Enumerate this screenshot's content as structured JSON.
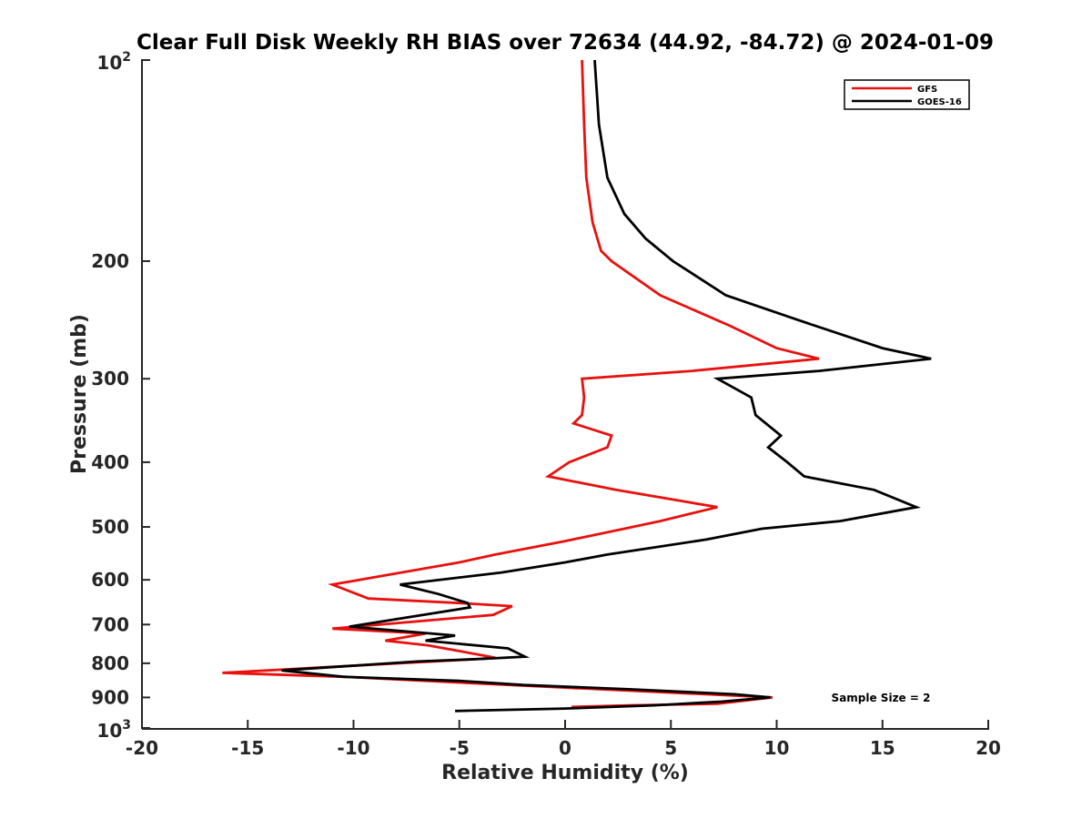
{
  "chart_data": {
    "type": "line",
    "title": "Clear Full Disk Weekly RH BIAS over 72634 (44.92, -84.72) @ 2024-01-09",
    "xlabel": "Relative Humidity (%)",
    "ylabel": "Pressure (mb)",
    "xlim": [
      -20,
      20
    ],
    "ylim": [
      100,
      1000
    ],
    "yscale": "log",
    "y_reversed": true,
    "grid": false,
    "legend_position": "top-right",
    "x_ticks": [
      "-20",
      "-15",
      "-10",
      "-5",
      "0",
      "5",
      "10",
      "15",
      "20"
    ],
    "x_tick_values": [
      -20,
      -15,
      -10,
      -5,
      0,
      5,
      10,
      15,
      20
    ],
    "y_ticks": [
      {
        "value": 100,
        "base": "10",
        "exp": "2"
      },
      {
        "value": 200,
        "label": "200"
      },
      {
        "value": 300,
        "label": "300"
      },
      {
        "value": 400,
        "label": "400"
      },
      {
        "value": 500,
        "label": "500"
      },
      {
        "value": 600,
        "label": "600"
      },
      {
        "value": 700,
        "label": "700"
      },
      {
        "value": 800,
        "label": "800"
      },
      {
        "value": 900,
        "label": "900"
      },
      {
        "value": 1000,
        "base": "10",
        "exp": "3"
      }
    ],
    "series": [
      {
        "name": "GFS",
        "color": "#e8110e",
        "points": [
          [
            0.8,
            100
          ],
          [
            0.9,
            125
          ],
          [
            1.0,
            150
          ],
          [
            1.3,
            175
          ],
          [
            1.7,
            193
          ],
          [
            2.2,
            200
          ],
          [
            4.5,
            225
          ],
          [
            7.8,
            250
          ],
          [
            10,
            270
          ],
          [
            12.0,
            280
          ],
          [
            6,
            292
          ],
          [
            0.8,
            300
          ],
          [
            0.9,
            320
          ],
          [
            0.8,
            340
          ],
          [
            0.4,
            350
          ],
          [
            2.2,
            365
          ],
          [
            2.0,
            380
          ],
          [
            0.2,
            400
          ],
          [
            -0.8,
            420
          ],
          [
            2.4,
            440
          ],
          [
            7.2,
            467
          ],
          [
            4.5,
            490
          ],
          [
            2.8,
            503
          ],
          [
            0,
            525
          ],
          [
            -3.3,
            550
          ],
          [
            -5.0,
            565
          ],
          [
            -11.0,
            610
          ],
          [
            -9.3,
            640
          ],
          [
            -5,
            650
          ],
          [
            -2.5,
            657
          ],
          [
            -3.4,
            677
          ],
          [
            -11.0,
            710
          ],
          [
            -6.6,
            722
          ],
          [
            -8.5,
            740
          ],
          [
            -6.5,
            752
          ],
          [
            -4.7,
            770
          ],
          [
            -3.3,
            785
          ],
          [
            -4.3,
            789
          ],
          [
            -11.0,
            810
          ],
          [
            -16.2,
            827
          ],
          [
            -10.5,
            838
          ],
          [
            -6,
            852
          ],
          [
            0,
            870
          ],
          [
            5.0,
            885
          ],
          [
            9.8,
            900
          ],
          [
            9.1,
            905
          ],
          [
            7.2,
            920
          ],
          [
            3,
            925
          ],
          [
            0.3,
            930
          ]
        ]
      },
      {
        "name": "GOES-16",
        "color": "#000000",
        "points": [
          [
            1.4,
            100
          ],
          [
            1.6,
            125
          ],
          [
            2.0,
            150
          ],
          [
            2.8,
            170
          ],
          [
            3.8,
            185
          ],
          [
            5.1,
            200
          ],
          [
            7.6,
            225
          ],
          [
            11,
            245
          ],
          [
            15.0,
            270
          ],
          [
            17.3,
            280
          ],
          [
            12,
            292
          ],
          [
            7.2,
            300
          ],
          [
            8.8,
            320
          ],
          [
            9.0,
            340
          ],
          [
            10.2,
            365
          ],
          [
            9.6,
            380
          ],
          [
            10.5,
            400
          ],
          [
            11.3,
            420
          ],
          [
            14.6,
            440
          ],
          [
            16.6,
            467
          ],
          [
            13,
            490
          ],
          [
            9.3,
            503
          ],
          [
            6.7,
            522
          ],
          [
            2,
            550
          ],
          [
            0,
            565
          ],
          [
            -3,
            585
          ],
          [
            -7.8,
            610
          ],
          [
            -6,
            630
          ],
          [
            -4.6,
            650
          ],
          [
            -4.5,
            660
          ],
          [
            -10.2,
            705
          ],
          [
            -5.2,
            727
          ],
          [
            -6.6,
            740
          ],
          [
            -2.7,
            760
          ],
          [
            -1.9,
            782
          ],
          [
            -4,
            788
          ],
          [
            -7,
            795
          ],
          [
            -13.4,
            820
          ],
          [
            -10.5,
            838
          ],
          [
            -5,
            850
          ],
          [
            -2.0,
            862
          ],
          [
            3,
            875
          ],
          [
            8.0,
            890
          ],
          [
            9.7,
            900
          ],
          [
            7.4,
            913
          ],
          [
            4.2,
            925
          ],
          [
            0,
            935
          ],
          [
            -5.2,
            943
          ]
        ]
      }
    ],
    "annotations": [
      "Sample Size = 2"
    ]
  }
}
